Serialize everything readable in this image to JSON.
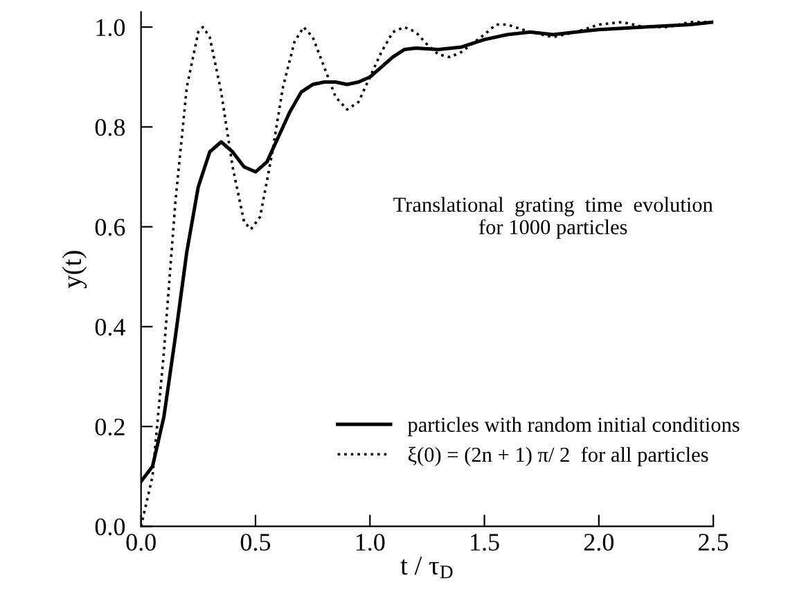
{
  "chart_data": {
    "type": "line",
    "xlabel": "t / τ$_{D}$",
    "ylabel": "y(t)",
    "annotations": [
      "Translational  grating  time  evolution\nfor 1000 particles"
    ],
    "xlim": [
      0,
      2.5
    ],
    "xticks": [
      {
        "value": 0,
        "label": "0.0"
      },
      0.5,
      {
        "value": 1,
        "label": "1.0"
      },
      1.5,
      {
        "value": 2,
        "label": "2.0"
      },
      2.5
    ],
    "ylim": [
      0,
      1.03
    ],
    "yticks": [
      {
        "value": 0,
        "label": "0.0"
      },
      0.2,
      0.4,
      0.6,
      0.8,
      {
        "value": 1,
        "label": "1.0"
      }
    ],
    "grid": false,
    "legend": "bottom right",
    "series": [
      {
        "name": "particles with random initial conditions",
        "color": "#000000",
        "line_style": "solid",
        "x": [
          0,
          0.05,
          0.1,
          0.15,
          0.2,
          0.25,
          0.3,
          0.35,
          0.4,
          0.45,
          0.5,
          0.55,
          0.6,
          0.65,
          0.7,
          0.75,
          0.8,
          0.85,
          0.9,
          0.95,
          1.0,
          1.05,
          1.1,
          1.15,
          1.2,
          1.3,
          1.4,
          1.5,
          1.6,
          1.7,
          1.8,
          1.9,
          2.0,
          2.2,
          2.4,
          2.5
        ],
        "values": [
          0.09,
          0.12,
          0.22,
          0.38,
          0.55,
          0.68,
          0.75,
          0.77,
          0.75,
          0.72,
          0.71,
          0.73,
          0.78,
          0.83,
          0.87,
          0.885,
          0.89,
          0.89,
          0.885,
          0.89,
          0.9,
          0.92,
          0.94,
          0.955,
          0.958,
          0.955,
          0.96,
          0.975,
          0.985,
          0.99,
          0.985,
          0.99,
          0.995,
          1.0,
          1.005,
          1.01
        ]
      },
      {
        "name": "ξ(0) = (2n + 1) π/ 2  for all particles",
        "color": "#000000",
        "line_style": "dotted",
        "x": [
          0,
          0.05,
          0.1,
          0.15,
          0.2,
          0.25,
          0.27,
          0.3,
          0.35,
          0.4,
          0.45,
          0.48,
          0.52,
          0.57,
          0.62,
          0.67,
          0.71,
          0.75,
          0.8,
          0.85,
          0.9,
          0.95,
          1.0,
          1.05,
          1.1,
          1.15,
          1.2,
          1.25,
          1.3,
          1.35,
          1.4,
          1.5,
          1.55,
          1.6,
          1.7,
          1.8,
          1.9,
          2.0,
          2.1,
          2.2,
          2.3,
          2.4,
          2.5
        ],
        "values": [
          0,
          0.1,
          0.35,
          0.65,
          0.88,
          0.99,
          1.0,
          0.98,
          0.87,
          0.72,
          0.61,
          0.595,
          0.62,
          0.74,
          0.88,
          0.97,
          1.0,
          0.98,
          0.92,
          0.86,
          0.835,
          0.85,
          0.9,
          0.95,
          0.99,
          1.0,
          0.99,
          0.965,
          0.945,
          0.94,
          0.95,
          0.985,
          1.005,
          1.005,
          0.99,
          0.98,
          0.99,
          1.005,
          1.01,
          1.0,
          1.0,
          1.01,
          1.01
        ]
      }
    ]
  }
}
